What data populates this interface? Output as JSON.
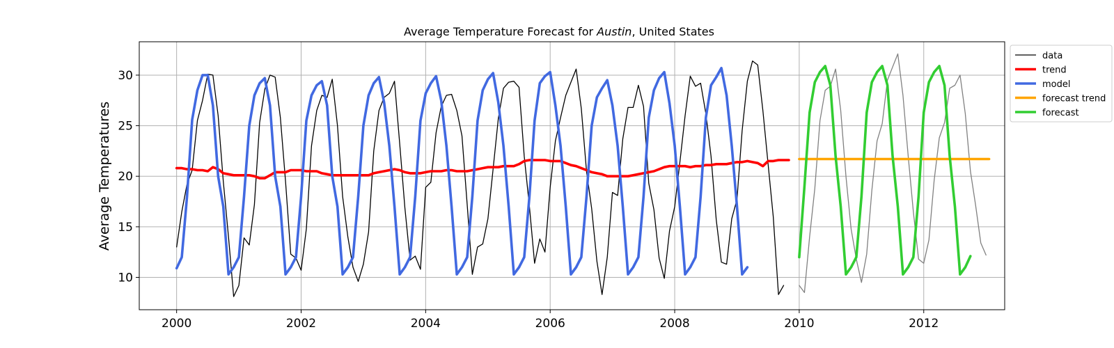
{
  "chart_data": {
    "type": "line",
    "title_parts": [
      "Average Temperature Forecast for ",
      "Austin",
      ", United States"
    ],
    "xlabel": "",
    "ylabel": "Average Temperatures",
    "xlim": [
      1999.4,
      2013.3
    ],
    "ylim": [
      6.8,
      33.3
    ],
    "xticks": [
      2000,
      2002,
      2004,
      2006,
      2008,
      2010,
      2012
    ],
    "yticks": [
      10,
      15,
      20,
      25,
      30
    ],
    "grid": true,
    "legend_placement": "outside-top-right",
    "colors": {
      "data": "#000000",
      "data_future": "#808080",
      "trend": "#ff0000",
      "model": "#4169e1",
      "forecast_trend": "#ffa500",
      "forecast": "#32cd32"
    },
    "legend": [
      "data",
      "trend",
      "model",
      "forecast trend",
      "forecast"
    ],
    "series": {
      "data": {
        "x_start": 2000.0,
        "x_step": 0.0833333,
        "values": [
          13.0,
          16.5,
          19.2,
          20.6,
          25.5,
          27.5,
          30.1,
          30.0,
          26.0,
          19.5,
          14.0,
          8.1,
          9.2,
          13.9,
          13.2,
          17.2,
          25.3,
          28.6,
          30.0,
          29.8,
          25.8,
          19.5,
          12.3,
          11.9,
          10.7,
          14.8,
          23.0,
          26.5,
          28.0,
          27.8,
          29.6,
          25.0,
          18.0,
          14.0,
          11.0,
          9.6,
          11.3,
          14.5,
          22.5,
          26.5,
          27.8,
          28.2,
          29.4,
          23.2,
          16.9,
          11.7,
          12.1,
          10.8,
          18.9,
          19.4,
          24.3,
          26.9,
          28.0,
          28.1,
          26.5,
          24.0,
          17.2,
          10.3,
          13.0,
          13.3,
          15.8,
          20.7,
          25.7,
          28.7,
          29.3,
          29.4,
          28.8,
          22.0,
          17.0,
          11.4,
          13.8,
          12.5,
          18.9,
          23.5,
          25.8,
          28.0,
          29.3,
          30.6,
          26.7,
          20.5,
          16.8,
          11.6,
          8.3,
          12.0,
          18.4,
          18.1,
          23.7,
          26.8,
          26.8,
          29.0,
          26.9,
          19.3,
          16.7,
          11.9,
          9.9,
          14.6,
          17.0,
          21.4,
          26.0,
          29.9,
          28.9,
          29.2,
          26.2,
          22.0,
          15.7,
          11.5,
          11.3,
          15.8,
          17.7,
          24.5,
          29.4,
          31.4,
          31.0,
          26.5,
          21.2,
          16.0,
          8.3,
          9.2
        ]
      },
      "data_future": {
        "x_start": 2010.0,
        "x_step": 0.0833333,
        "values": [
          9.2,
          8.5,
          14.0,
          18.8,
          25.5,
          28.5,
          28.9,
          30.6,
          26.5,
          20.0,
          14.8,
          11.8,
          9.5,
          12.3,
          18.6,
          23.5,
          25.2,
          29.5,
          30.8,
          32.1,
          28.0,
          22.0,
          16.5,
          11.8,
          11.4,
          13.7,
          19.6,
          23.8,
          25.3,
          28.7,
          29.0,
          30.0,
          26.2,
          20.5,
          17.1,
          13.4,
          12.2
        ]
      },
      "trend": {
        "x_start": 2000.0,
        "x_step": 0.0833333,
        "values": [
          20.8,
          20.8,
          20.7,
          20.7,
          20.6,
          20.6,
          20.5,
          20.9,
          20.7,
          20.3,
          20.2,
          20.1,
          20.1,
          20.1,
          20.1,
          20.0,
          19.8,
          19.8,
          20.1,
          20.4,
          20.4,
          20.4,
          20.6,
          20.6,
          20.6,
          20.5,
          20.5,
          20.5,
          20.3,
          20.2,
          20.1,
          20.1,
          20.1,
          20.1,
          20.1,
          20.1,
          20.1,
          20.1,
          20.3,
          20.4,
          20.5,
          20.6,
          20.7,
          20.6,
          20.4,
          20.3,
          20.3,
          20.3,
          20.4,
          20.5,
          20.5,
          20.5,
          20.6,
          20.6,
          20.5,
          20.5,
          20.5,
          20.6,
          20.7,
          20.8,
          20.9,
          20.9,
          20.9,
          21.0,
          21.0,
          21.0,
          21.2,
          21.5,
          21.6,
          21.6,
          21.6,
          21.6,
          21.5,
          21.5,
          21.5,
          21.3,
          21.1,
          21.0,
          20.8,
          20.6,
          20.4,
          20.3,
          20.2,
          20.0,
          20.0,
          20.0,
          20.0,
          20.0,
          20.1,
          20.2,
          20.3,
          20.4,
          20.5,
          20.7,
          20.9,
          21.0,
          21.0,
          21.0,
          21.0,
          20.9,
          21.0,
          21.0,
          21.1,
          21.1,
          21.2,
          21.2,
          21.2,
          21.3,
          21.4,
          21.4,
          21.5,
          21.4,
          21.3,
          21.0,
          21.5,
          21.5,
          21.6,
          21.6,
          21.6
        ]
      },
      "model": {
        "x_start": 2000.0,
        "x_step": 0.0833333,
        "values": [
          10.9,
          12.0,
          18.0,
          25.6,
          28.5,
          30.0,
          30.0,
          27.0,
          20.0,
          17.0,
          10.3,
          11.0,
          12.0,
          18.0,
          25.0,
          28.0,
          29.2,
          29.7,
          27.0,
          20.0,
          17.0,
          10.3,
          11.0,
          12.0,
          18.0,
          25.5,
          28.0,
          29.0,
          29.4,
          27.0,
          20.0,
          17.0,
          10.3,
          11.0,
          12.0,
          18.0,
          25.0,
          28.0,
          29.2,
          29.8,
          27.3,
          23.0,
          17.0,
          10.3,
          11.0,
          12.0,
          18.0,
          25.5,
          28.2,
          29.2,
          29.9,
          27.5,
          23.0,
          17.0,
          10.3,
          11.0,
          12.0,
          18.0,
          25.5,
          28.5,
          29.6,
          30.2,
          27.3,
          23.0,
          17.0,
          10.3,
          11.0,
          12.0,
          18.0,
          25.5,
          29.2,
          29.9,
          30.3,
          27.0,
          23.0,
          17.0,
          10.3,
          11.0,
          12.0,
          18.0,
          25.0,
          27.8,
          28.7,
          29.5,
          27.0,
          23.0,
          17.0,
          10.3,
          11.0,
          12.0,
          18.0,
          25.8,
          28.5,
          29.7,
          30.3,
          27.2,
          23.0,
          17.0,
          10.3,
          11.0,
          12.0,
          18.0,
          25.8,
          29.0,
          29.8,
          30.7,
          28.0,
          23.0,
          17.0,
          10.3,
          11.0
        ]
      },
      "forecast": {
        "x_start": 2010.0,
        "x_step": 0.0833333,
        "values": [
          12.0,
          19.0,
          26.3,
          29.3,
          30.3,
          30.9,
          29.0,
          22.0,
          17.0,
          10.3,
          11.0,
          12.0,
          18.0,
          26.3,
          29.3,
          30.3,
          30.9,
          29.0,
          22.0,
          17.0,
          10.3,
          11.0,
          12.0,
          18.0,
          26.3,
          29.3,
          30.3,
          30.9,
          29.0,
          22.0,
          17.0,
          10.3,
          11.0,
          12.1
        ]
      },
      "forecast_trend": {
        "x": [
          2010.0,
          2013.05
        ],
        "values": [
          21.7,
          21.7
        ]
      }
    }
  }
}
